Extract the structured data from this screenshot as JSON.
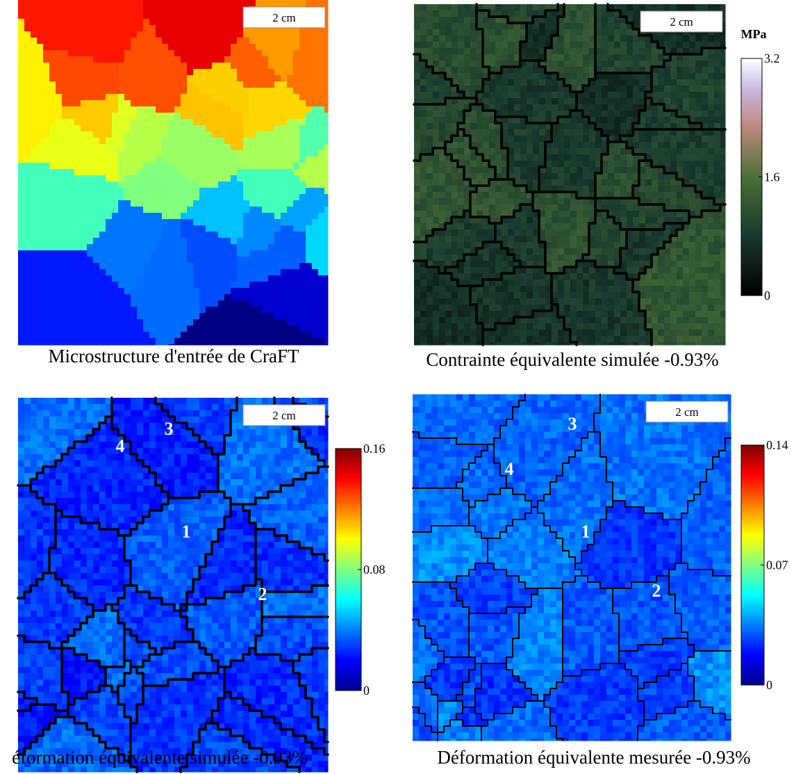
{
  "panels": [
    {
      "caption": "Microstructure d'entrée de CraFT",
      "scale_bar": "2 cm"
    },
    {
      "caption": "Contrainte équivalente simulée -0.93%",
      "scale_bar": "2 cm",
      "colorbar": {
        "label": "MPa",
        "lim": [
          0,
          3.2
        ],
        "ticks": [
          0,
          1.6,
          3.2
        ]
      }
    },
    {
      "caption": "éformation équivalente simulée -0.93%",
      "scale_bar": "2 cm",
      "colorbar": {
        "lim": [
          0,
          0.16
        ],
        "ticks": [
          0,
          0.08,
          0.16
        ]
      },
      "grain_labels": [
        "4",
        "3",
        "1",
        "2"
      ]
    },
    {
      "caption": "Déformation équivalente mesurée -0.93%",
      "scale_bar": "2 cm",
      "colorbar": {
        "lim": [
          0,
          0.14
        ],
        "ticks": [
          0,
          0.07,
          0.14
        ]
      },
      "grain_labels": [
        "4",
        "3",
        "1",
        "2"
      ]
    }
  ]
}
